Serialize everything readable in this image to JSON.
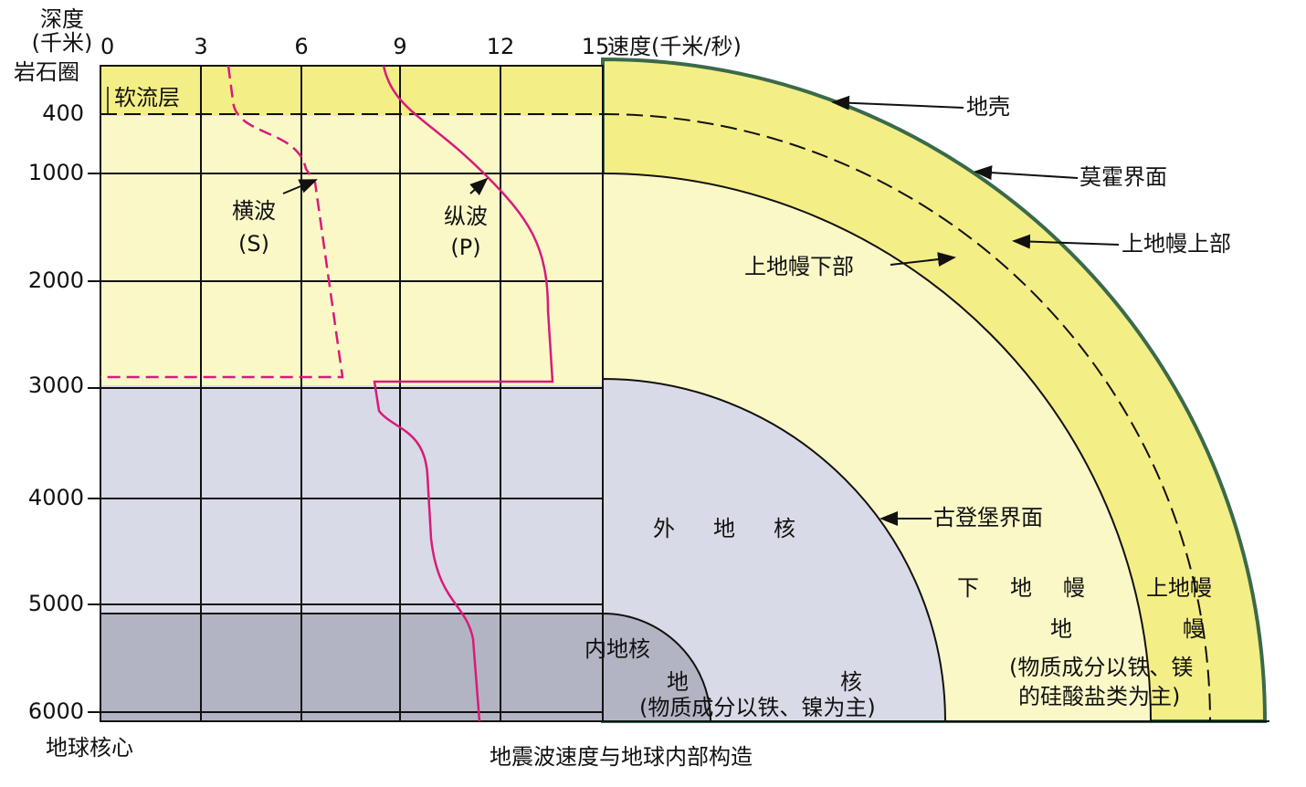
{
  "depth_title": [
    "深度",
    "(千米)"
  ],
  "speed_ticks": [
    0,
    3,
    6,
    9,
    12,
    15
  ],
  "speed_title": "速度(千米/秒)",
  "depth_ticks": [
    400,
    1000,
    2000,
    3000,
    4000,
    5000,
    6000
  ],
  "lithosphere": "岩石圈",
  "asthenosphere": "软流层",
  "earth_center": "地球核心",
  "s_wave": {
    "name": "横波",
    "symbol": "(S)"
  },
  "p_wave": {
    "name": "纵波",
    "symbol": "(P)"
  },
  "crust": "地壳",
  "moho": "莫霍界面",
  "upper_mantle_upper": "上地幔上部",
  "upper_mantle_lower": "上地幔下部",
  "gutenberg": "古登堡界面",
  "outer_core": "外地核",
  "inner_core": "内地核",
  "core": [
    "地",
    "核"
  ],
  "core_note": "(物质成分以铁、镍为主)",
  "lower_mantle": "下地幔",
  "upper_mantle": "上地幔",
  "mantle": [
    "地",
    "幔"
  ],
  "mantle_note": [
    "(物质成分以铁、镁",
    "的硅酸盐类为主)"
  ],
  "caption": "地震波速度与地球内部构造"
}
